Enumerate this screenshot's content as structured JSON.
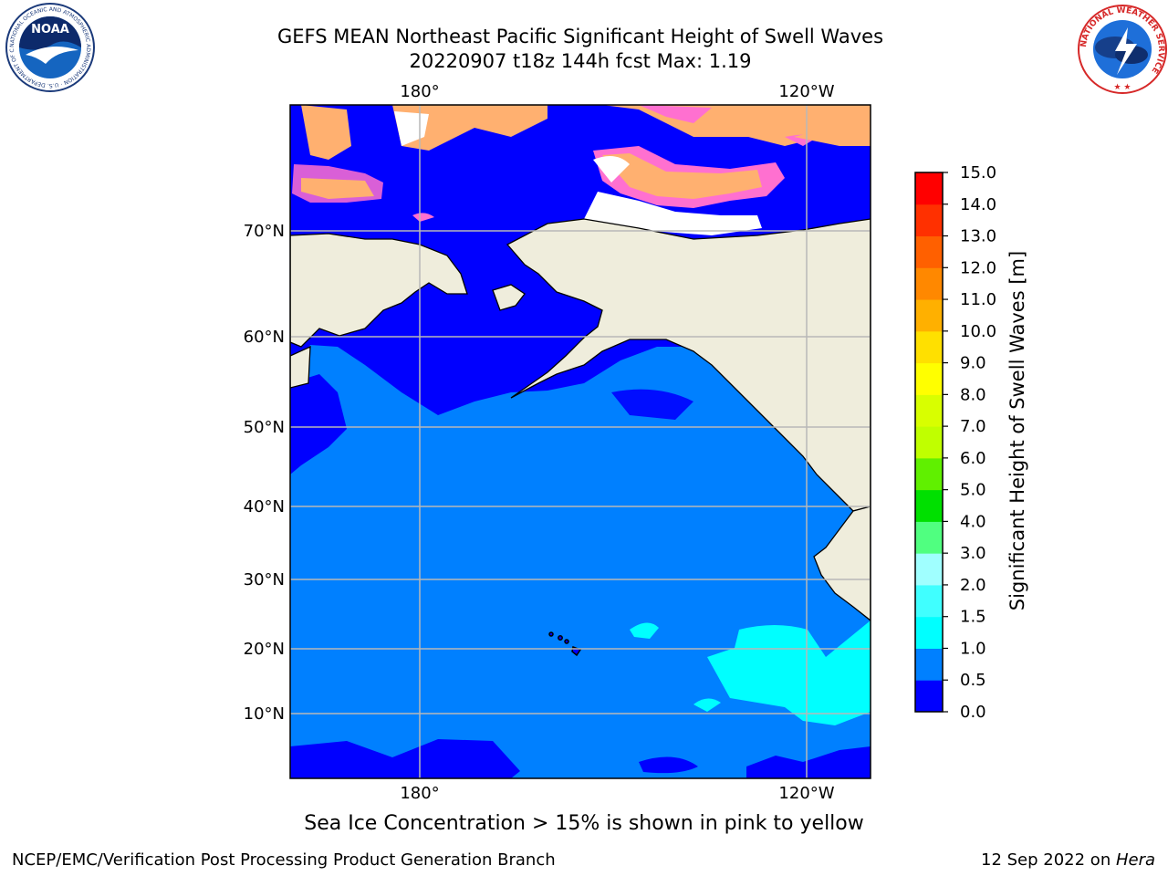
{
  "title": {
    "line1": "GEFS MEAN Northeast Pacific Significant Height of Swell Waves",
    "line2": "20220907 t18z 144h fcst   Max: 1.19"
  },
  "map": {
    "lon_labels": [
      "180°",
      "120°W"
    ],
    "lat_labels": [
      "70°N",
      "60°N",
      "50°N",
      "40°N",
      "30°N",
      "20°N",
      "10°N"
    ],
    "colors": {
      "ocean_low": "#0000ff",
      "ocean_mid": "#0080ff",
      "ocean_high": "#00ffff",
      "land": "#efeddc",
      "ice_pink": "#ff70d0",
      "ice_orange": "#ffb070",
      "grid": "#b8b8b8"
    }
  },
  "colorbar": {
    "label": "Significant Height of Swell Waves [m]",
    "ticks": [
      "0.0",
      "0.5",
      "1.0",
      "1.5",
      "2.0",
      "3.0",
      "4.0",
      "5.0",
      "6.0",
      "7.0",
      "8.0",
      "9.0",
      "10.0",
      "11.0",
      "12.0",
      "13.0",
      "14.0",
      "15.0"
    ],
    "colors": [
      "#0000ff",
      "#0080ff",
      "#00ffff",
      "#40ffff",
      "#a0ffff",
      "#50ff80",
      "#00e000",
      "#60f000",
      "#c0ff00",
      "#d8ff00",
      "#ffff00",
      "#ffe000",
      "#ffb000",
      "#ff8800",
      "#ff6000",
      "#ff3000",
      "#ff0000"
    ]
  },
  "logos": {
    "noaa_text": "NOAA",
    "noaa_ring": "NATIONAL OCEANIC AND ATMOSPHERIC ADMINISTRATION · U.S. DEPARTMENT OF COMMERCE",
    "nws_ring": "NATIONAL WEATHER SERVICE"
  },
  "footnote": "Sea Ice Concentration > 15% is shown in pink to yellow",
  "credits": {
    "left": "NCEP/EMC/Verification Post Processing Product Generation Branch",
    "right_prefix": "12 Sep 2022 on ",
    "right_machine": "Hera"
  }
}
